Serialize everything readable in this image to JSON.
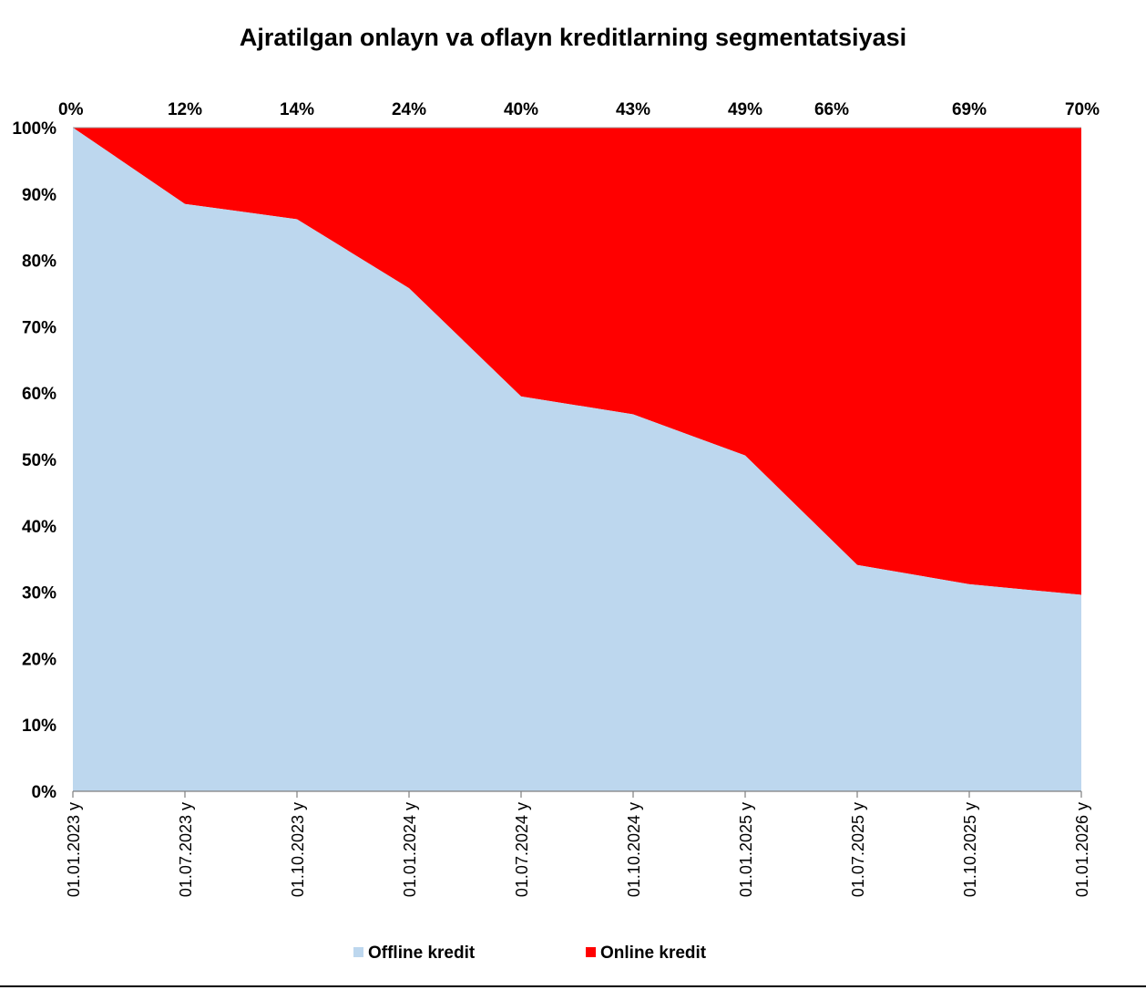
{
  "chart_data": {
    "type": "area",
    "title": "Ajratilgan onlayn va oflayn kreditlarning segmentatsiyasi",
    "categories": [
      "01.01.2023 y",
      "01.07.2023 y",
      "01.10.2023 y",
      "01.01.2024 y",
      "01.07.2024 y",
      "01.10.2024 y",
      "01.01.2025 y",
      "01.07.2025 y",
      "01.10.2025 y",
      "01.01.2026 y"
    ],
    "series": [
      {
        "name": "Offline kredit",
        "color": "#bdd7ee",
        "values": [
          100,
          88.5,
          86.2,
          75.8,
          59.5,
          56.8,
          50.6,
          34.1,
          31.2,
          29.6
        ]
      },
      {
        "name": "Online kredit",
        "color": "#ff0000",
        "values": [
          0,
          11.5,
          13.8,
          24.2,
          40.5,
          43.2,
          49.4,
          65.9,
          68.8,
          70.4
        ]
      }
    ],
    "data_labels": [
      "0%",
      "12%",
      "14%",
      "24%",
      "40%",
      "43%",
      "49%",
      "66%",
      "69%",
      "70%"
    ],
    "y_ticks": [
      "0%",
      "10%",
      "20%",
      "30%",
      "40%",
      "50%",
      "60%",
      "70%",
      "80%",
      "90%",
      "100%"
    ],
    "ylim": [
      0,
      100
    ],
    "stacking": "percent",
    "grid": false,
    "legend": "bottom"
  }
}
